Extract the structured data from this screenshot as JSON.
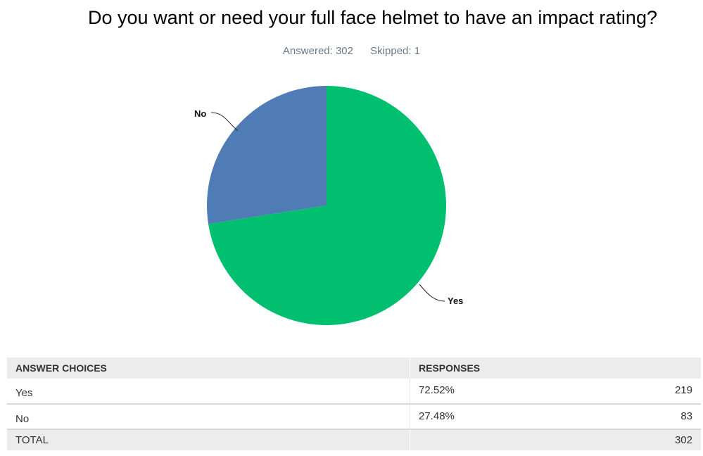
{
  "question": "Do you want or need your full face helmet to have an impact rating?",
  "answered_label": "Answered: 302",
  "skipped_label": "Skipped: 1",
  "colors": {
    "yes": "#00bf6f",
    "no": "#507cb6"
  },
  "chart_data": {
    "type": "pie",
    "title": "Do you want or need your full face helmet to have an impact rating?",
    "slices": [
      {
        "label": "Yes",
        "value": 72.52,
        "count": 219
      },
      {
        "label": "No",
        "value": 27.48,
        "count": 83
      }
    ]
  },
  "table": {
    "headers": {
      "choice": "ANSWER CHOICES",
      "responses": "RESPONSES"
    },
    "rows": [
      {
        "choice": "Yes",
        "percent": "72.52%",
        "count": "219"
      },
      {
        "choice": "No",
        "percent": "27.48%",
        "count": "83"
      }
    ],
    "total": {
      "label": "TOTAL",
      "count": "302"
    }
  }
}
